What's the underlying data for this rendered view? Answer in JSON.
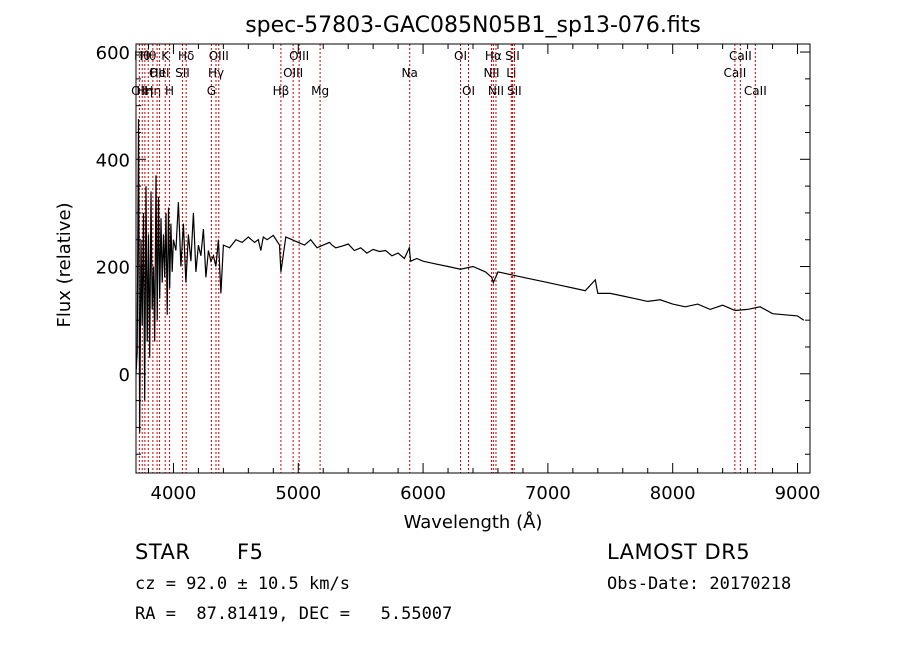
{
  "chart_data": {
    "type": "line",
    "title": "spec-57803-GAC085N05B1_sp13-076.fits",
    "xlabel": "Wavelength (Å)",
    "ylabel": "Flux (relative)",
    "xlim": [
      3700,
      9100
    ],
    "ylim": [
      -185,
      615
    ],
    "xticks": [
      4000,
      5000,
      6000,
      7000,
      8000,
      9000
    ],
    "yticks": [
      0,
      200,
      400,
      600
    ],
    "grid": false,
    "line_color": "#000000",
    "marker_color": "#cc0000",
    "series": [
      {
        "x": [
          3700,
          3710,
          3720,
          3730,
          3740,
          3750,
          3760,
          3770,
          3780,
          3790,
          3800,
          3810,
          3820,
          3830,
          3840,
          3850,
          3860,
          3870,
          3880,
          3890,
          3900,
          3910,
          3920,
          3930,
          3940,
          3950,
          3960,
          3970,
          3980,
          3990,
          4000,
          4020,
          4040,
          4060,
          4080,
          4100,
          4120,
          4140,
          4160,
          4180,
          4200,
          4220,
          4240,
          4260,
          4280,
          4300,
          4320,
          4340,
          4360,
          4380,
          4400,
          4450,
          4500,
          4550,
          4600,
          4650,
          4680,
          4700,
          4720,
          4750,
          4800,
          4850,
          4861,
          4900,
          4950,
          5000,
          5050,
          5100,
          5150,
          5200,
          5250,
          5270,
          5300,
          5350,
          5400,
          5450,
          5500,
          5550,
          5600,
          5650,
          5700,
          5750,
          5800,
          5850,
          5890,
          5900,
          5950,
          6000,
          6100,
          6200,
          6300,
          6400,
          6500,
          6550,
          6563,
          6600,
          6700,
          6800,
          6900,
          7000,
          7100,
          7200,
          7300,
          7380,
          7400,
          7500,
          7600,
          7700,
          7800,
          7900,
          8000,
          8100,
          8200,
          8300,
          8400,
          8500,
          8600,
          8700,
          8800,
          8900,
          9000,
          9050
        ],
        "y": [
          0,
          40,
          475,
          -110,
          250,
          90,
          300,
          -50,
          350,
          60,
          260,
          30,
          340,
          120,
          200,
          60,
          370,
          100,
          330,
          140,
          290,
          170,
          260,
          180,
          300,
          110,
          310,
          160,
          280,
          190,
          250,
          230,
          320,
          200,
          280,
          170,
          260,
          210,
          300,
          190,
          240,
          220,
          270,
          180,
          230,
          210,
          220,
          200,
          250,
          150,
          240,
          235,
          250,
          245,
          255,
          245,
          250,
          230,
          255,
          250,
          258,
          240,
          190,
          255,
          250,
          245,
          240,
          250,
          235,
          240,
          245,
          240,
          235,
          238,
          242,
          230,
          235,
          225,
          232,
          228,
          230,
          220,
          225,
          215,
          235,
          210,
          215,
          210,
          205,
          200,
          195,
          200,
          190,
          180,
          170,
          190,
          185,
          180,
          175,
          170,
          165,
          160,
          155,
          175,
          150,
          150,
          145,
          140,
          135,
          138,
          130,
          125,
          130,
          120,
          128,
          118,
          120,
          125,
          112,
          110,
          108,
          100
        ]
      }
    ],
    "annotation_lines": [
      {
        "wave": 3727,
        "label": "OII",
        "row": 3
      },
      {
        "wave": 3750,
        "label": "Hθ",
        "row": 1
      },
      {
        "wave": 3771,
        "label": "Hη",
        "row": 3
      },
      {
        "wave": 3798,
        "label": "Hθ",
        "row": 1
      },
      {
        "wave": 3835,
        "label": "Hη",
        "row": 3
      },
      {
        "wave": 3869,
        "label": "OII",
        "row": 2
      },
      {
        "wave": 3889,
        "label": "HeI",
        "row": 2
      },
      {
        "wave": 3934,
        "label": "K",
        "row": 1
      },
      {
        "wave": 3969,
        "label": "H",
        "row": 3
      },
      {
        "wave": 4072,
        "label": "SII",
        "row": 2
      },
      {
        "wave": 4102,
        "label": "Hδ",
        "row": 1
      },
      {
        "wave": 4304,
        "label": "G",
        "row": 3
      },
      {
        "wave": 4341,
        "label": "Hγ",
        "row": 2
      },
      {
        "wave": 4363,
        "label": "OIII",
        "row": 1
      },
      {
        "wave": 4861,
        "label": "Hβ",
        "row": 3
      },
      {
        "wave": 4959,
        "label": "OIII",
        "row": 2
      },
      {
        "wave": 5007,
        "label": "OIII",
        "row": 1
      },
      {
        "wave": 5175,
        "label": "Mg",
        "row": 3
      },
      {
        "wave": 5893,
        "label": "Na",
        "row": 2
      },
      {
        "wave": 6300,
        "label": "OI",
        "row": 1
      },
      {
        "wave": 6364,
        "label": "OI",
        "row": 3
      },
      {
        "wave": 6548,
        "label": "NII",
        "row": 2
      },
      {
        "wave": 6563,
        "label": "Hα",
        "row": 1
      },
      {
        "wave": 6584,
        "label": "NII",
        "row": 3
      },
      {
        "wave": 6707,
        "label": "Li",
        "row": 2
      },
      {
        "wave": 6716,
        "label": "SII",
        "row": 1
      },
      {
        "wave": 6731,
        "label": "SII",
        "row": 3
      },
      {
        "wave": 8498,
        "label": "CaII",
        "row": 2
      },
      {
        "wave": 8542,
        "label": "CaII",
        "row": 1
      },
      {
        "wave": 8662,
        "label": "CaII",
        "row": 3
      }
    ]
  },
  "info": {
    "class": "STAR",
    "subclass": "F5",
    "survey": "LAMOST DR5",
    "cz": "cz = 92.0 ± 10.5 km/s",
    "obs_date": "Obs-Date: 20170218",
    "coords": "RA =  87.81419, DEC =   5.55007"
  }
}
